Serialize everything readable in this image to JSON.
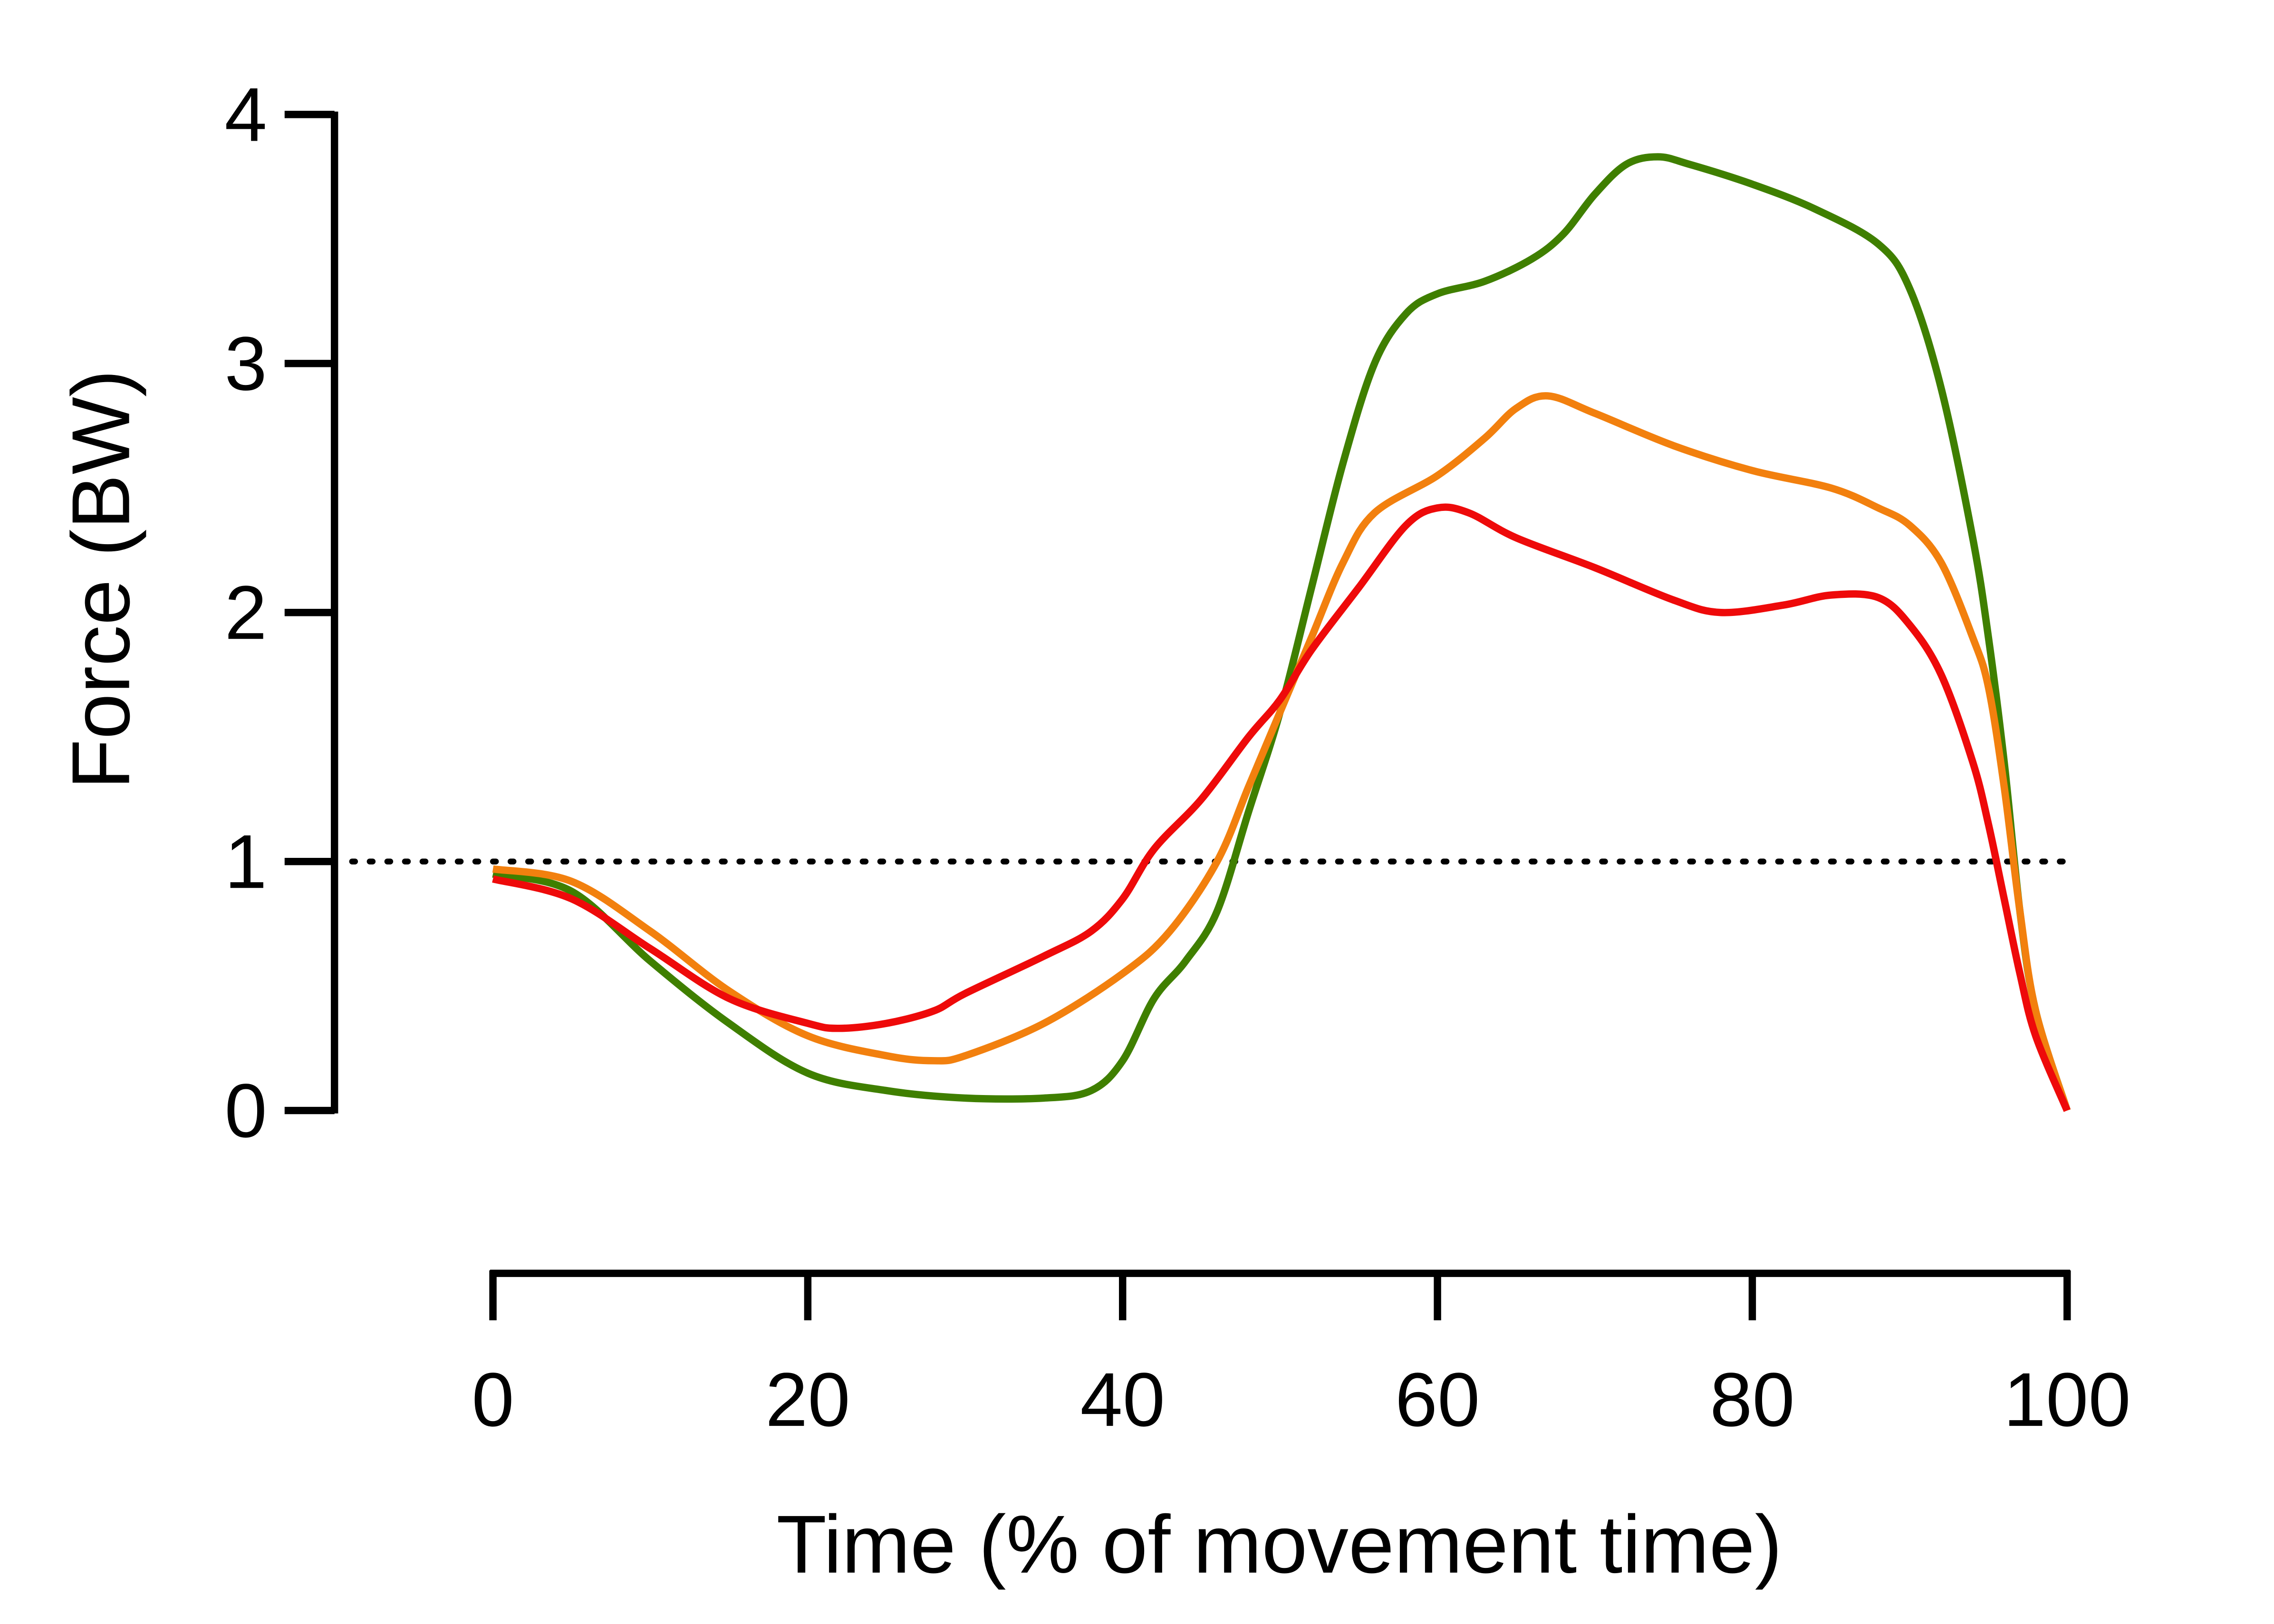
{
  "chart_data": {
    "type": "line",
    "title": "",
    "xlabel": "Time (% of movement time)",
    "ylabel": "Force (BW)",
    "xlim": [
      0,
      100
    ],
    "ylim": [
      0,
      4
    ],
    "xticks": [
      "0",
      "20",
      "40",
      "60",
      "80",
      "100"
    ],
    "yticks": [
      "0",
      "1",
      "2",
      "3",
      "4"
    ],
    "reference_line": {
      "y": 1,
      "style": "dotted",
      "color": "#000000"
    },
    "grid": false,
    "series": [
      {
        "name": "green",
        "color": "#3f7f00",
        "x": [
          0,
          5,
          10,
          15,
          20,
          25,
          30,
          35,
          38,
          40,
          42,
          44,
          46,
          48,
          50,
          52,
          54,
          56,
          58,
          60,
          63,
          66,
          68,
          70,
          72,
          74,
          76,
          80,
          84,
          88,
          90,
          92,
          94,
          95,
          96,
          97,
          98,
          100
        ],
        "y": [
          0.95,
          0.88,
          0.6,
          0.35,
          0.15,
          0.08,
          0.05,
          0.05,
          0.08,
          0.2,
          0.45,
          0.6,
          0.8,
          1.2,
          1.6,
          2.1,
          2.6,
          3.0,
          3.2,
          3.28,
          3.33,
          3.42,
          3.52,
          3.68,
          3.8,
          3.83,
          3.8,
          3.72,
          3.62,
          3.48,
          3.3,
          2.9,
          2.3,
          1.9,
          1.4,
          0.8,
          0.4,
          0
        ]
      },
      {
        "name": "orange",
        "color": "#f2800e",
        "x": [
          0,
          5,
          10,
          15,
          20,
          25,
          28,
          30,
          35,
          40,
          43,
          46,
          48,
          50,
          52,
          54,
          56,
          60,
          63,
          65,
          67,
          70,
          75,
          80,
          85,
          88,
          90,
          92,
          94,
          95,
          96,
          97,
          98,
          100
        ],
        "y": [
          0.97,
          0.92,
          0.72,
          0.48,
          0.3,
          0.22,
          0.2,
          0.22,
          0.35,
          0.55,
          0.72,
          1.0,
          1.3,
          1.6,
          1.9,
          2.2,
          2.4,
          2.55,
          2.7,
          2.82,
          2.87,
          2.8,
          2.67,
          2.57,
          2.5,
          2.42,
          2.35,
          2.2,
          1.9,
          1.7,
          1.3,
          0.8,
          0.4,
          0
        ]
      },
      {
        "name": "red",
        "color": "#ee0a0a",
        "x": [
          0,
          5,
          10,
          15,
          20,
          22,
          25,
          28,
          30,
          35,
          38,
          40,
          42,
          45,
          48,
          50,
          52,
          55,
          58,
          60,
          62,
          65,
          70,
          75,
          78,
          82,
          85,
          88,
          90,
          92,
          94,
          95,
          96,
          97,
          98,
          100
        ],
        "y": [
          0.93,
          0.85,
          0.65,
          0.45,
          0.35,
          0.33,
          0.35,
          0.4,
          0.47,
          0.62,
          0.72,
          0.85,
          1.05,
          1.25,
          1.5,
          1.65,
          1.85,
          2.1,
          2.35,
          2.42,
          2.4,
          2.3,
          2.18,
          2.05,
          2.0,
          2.03,
          2.07,
          2.06,
          1.95,
          1.75,
          1.4,
          1.15,
          0.85,
          0.55,
          0.3,
          0
        ]
      }
    ]
  }
}
